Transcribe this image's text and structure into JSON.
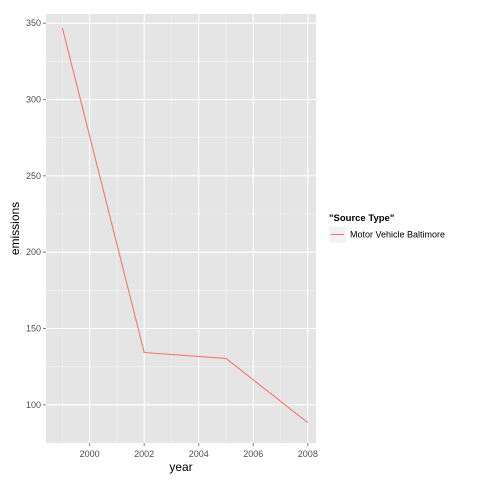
{
  "chart_data": {
    "type": "line",
    "xlabel": "year",
    "ylabel": "emissions",
    "xlim": [
      1998.4,
      2008.3
    ],
    "ylim": [
      75,
      356
    ],
    "x_ticks": [
      2000,
      2002,
      2004,
      2006,
      2008
    ],
    "x_tick_labels": [
      "2000",
      "2002",
      "2004",
      "2006",
      "2008"
    ],
    "y_ticks": [
      100,
      150,
      200,
      250,
      300,
      350
    ],
    "y_tick_labels": [
      "100",
      "150",
      "200",
      "250",
      "300",
      "350"
    ],
    "grid": true,
    "legend": {
      "title": "\"Source Type\"",
      "placement": "right"
    },
    "series": [
      {
        "name": "Motor Vehicle Baltimore",
        "color": "#F8766D",
        "x": [
          1999,
          2002,
          2005,
          2008
        ],
        "y": [
          346.8,
          134.3,
          130.4,
          88.3
        ]
      }
    ]
  }
}
